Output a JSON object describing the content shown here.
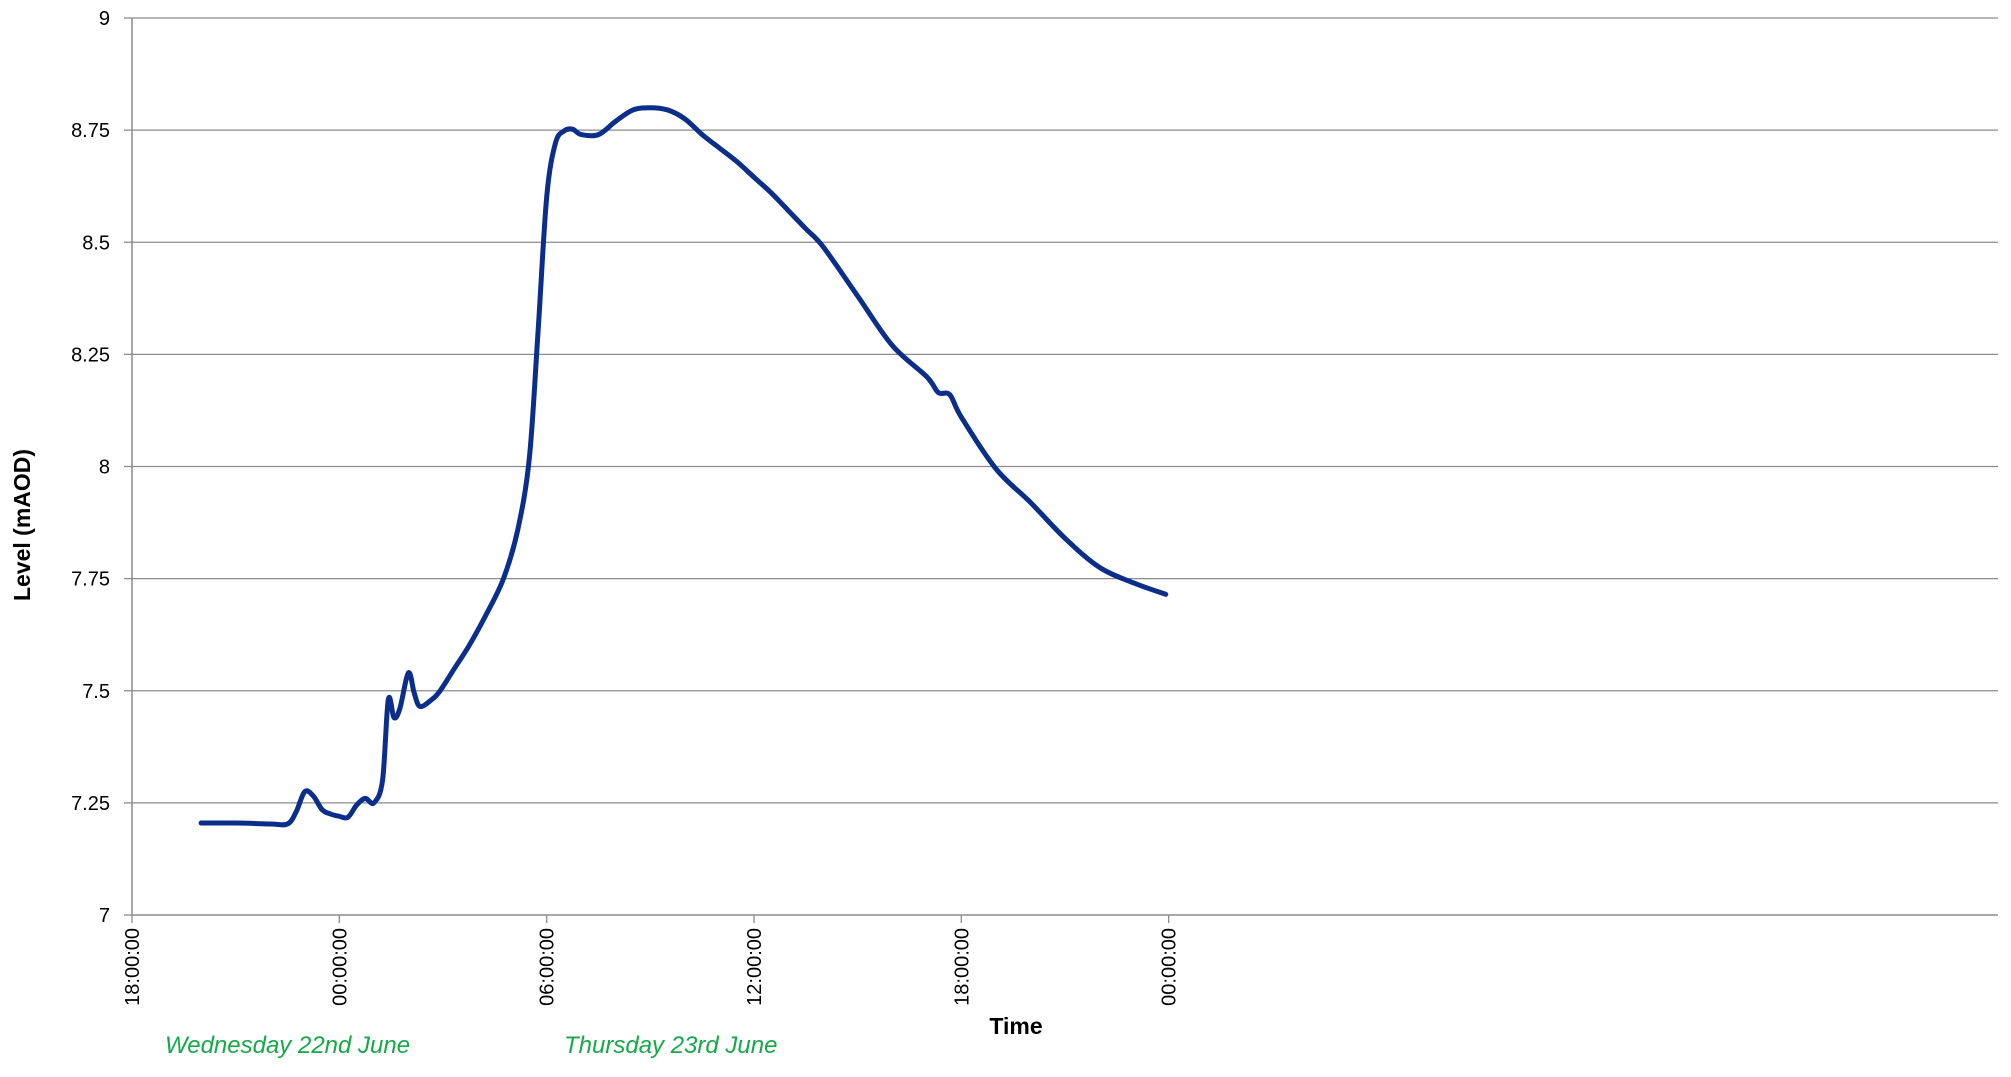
{
  "chart_data": {
    "type": "line",
    "title": "",
    "xlabel": "Time",
    "ylabel": "Level (mAOD)",
    "ylim": [
      7,
      9
    ],
    "xlim": [
      "2011-06-22T18:00:00",
      "2011-06-25T00:00:00"
    ],
    "yticks": [
      {
        "value": 7,
        "label": "7"
      },
      {
        "value": 7.25,
        "label": "7.25"
      },
      {
        "value": 7.5,
        "label": "7.5"
      },
      {
        "value": 7.75,
        "label": "7.75"
      },
      {
        "value": 8,
        "label": "8"
      },
      {
        "value": 8.25,
        "label": "8.25"
      },
      {
        "value": 8.5,
        "label": "8.5"
      },
      {
        "value": 8.75,
        "label": "8.75"
      },
      {
        "value": 9,
        "label": "9"
      }
    ],
    "xticks": [
      {
        "value": "2011-06-22T18:00:00",
        "label": "18:00:00"
      },
      {
        "value": "2011-06-23T00:00:00",
        "label": "00:00:00"
      },
      {
        "value": "2011-06-23T06:00:00",
        "label": "06:00:00"
      },
      {
        "value": "2011-06-23T12:00:00",
        "label": "12:00:00"
      },
      {
        "value": "2011-06-23T18:00:00",
        "label": "18:00:00"
      },
      {
        "value": "2011-06-24T00:00:00",
        "label": "00:00:00"
      }
    ],
    "grid": {
      "horizontal": true,
      "vertical": false
    },
    "legend": "none",
    "line_color": "#0b2e8a",
    "day_labels": [
      {
        "text": "Wednesday 22nd June",
        "color": "#17a84a"
      },
      {
        "text": "Thursday 23rd June",
        "color": "#17a84a"
      }
    ],
    "series": [
      {
        "x": [
          "2011-06-22T20:00",
          "2011-06-22T21:00",
          "2011-06-22T22:00",
          "2011-06-22T22:30",
          "2011-06-22T22:45",
          "2011-06-22T23:00",
          "2011-06-22T23:15",
          "2011-06-22T23:30",
          "2011-06-22T23:45",
          "2011-06-23T00:00",
          "2011-06-23T00:15",
          "2011-06-23T00:30",
          "2011-06-23T00:45",
          "2011-06-23T01:00",
          "2011-06-23T01:15",
          "2011-06-23T01:25",
          "2011-06-23T01:35",
          "2011-06-23T01:45",
          "2011-06-23T02:00",
          "2011-06-23T02:10",
          "2011-06-23T02:20",
          "2011-06-23T02:40",
          "2011-06-23T02:55",
          "2011-06-23T03:20",
          "2011-06-23T03:45",
          "2011-06-23T04:15",
          "2011-06-23T04:45",
          "2011-06-23T05:10",
          "2011-06-23T05:30",
          "2011-06-23T05:45",
          "2011-06-23T06:00",
          "2011-06-23T06:15",
          "2011-06-23T06:30",
          "2011-06-23T06:45",
          "2011-06-23T07:00",
          "2011-06-23T07:30",
          "2011-06-23T08:00",
          "2011-06-23T08:30",
          "2011-06-23T09:00",
          "2011-06-23T09:30",
          "2011-06-23T10:00",
          "2011-06-23T10:30",
          "2011-06-23T11:00",
          "2011-06-23T11:30",
          "2011-06-23T12:00",
          "2011-06-23T12:30",
          "2011-06-23T13:00",
          "2011-06-23T13:30",
          "2011-06-23T14:00",
          "2011-06-23T15:00",
          "2011-06-23T16:00",
          "2011-06-23T17:00",
          "2011-06-23T17:20",
          "2011-06-23T17:40",
          "2011-06-23T18:00",
          "2011-06-23T19:00",
          "2011-06-23T20:00",
          "2011-06-23T21:00",
          "2011-06-23T22:00",
          "2011-06-23T23:00",
          "2011-06-23T23:55"
        ],
        "y": [
          7.205,
          7.205,
          7.203,
          7.203,
          7.23,
          7.275,
          7.265,
          7.235,
          7.225,
          7.22,
          7.218,
          7.245,
          7.26,
          7.25,
          7.3,
          7.48,
          7.44,
          7.46,
          7.54,
          7.495,
          7.465,
          7.48,
          7.5,
          7.55,
          7.6,
          7.67,
          7.75,
          7.86,
          8.02,
          8.3,
          8.6,
          8.72,
          8.748,
          8.752,
          8.74,
          8.74,
          8.77,
          8.795,
          8.8,
          8.795,
          8.775,
          8.74,
          8.71,
          8.68,
          8.645,
          8.61,
          8.57,
          8.53,
          8.49,
          8.38,
          8.27,
          8.2,
          8.165,
          8.16,
          8.11,
          7.995,
          7.92,
          7.84,
          7.775,
          7.74,
          7.715
        ]
      }
    ]
  }
}
